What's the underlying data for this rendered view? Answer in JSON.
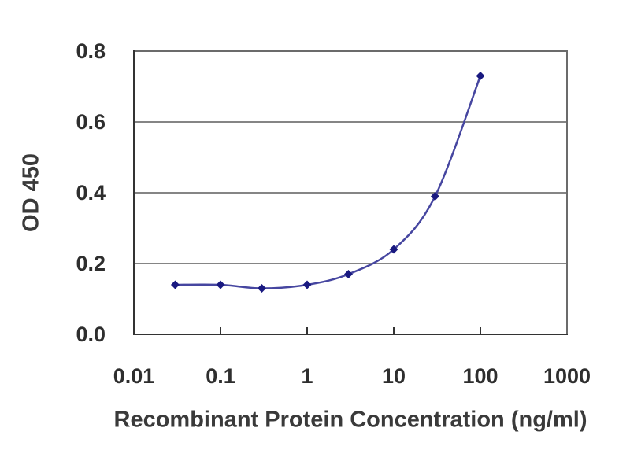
{
  "figure": {
    "background_color": "#ffffff"
  },
  "chart_data": {
    "type": "line",
    "subtype": "scatter-smooth-line-with-markers",
    "title": "",
    "xlabel": "Recombinant Protein Concentration (ng/ml)",
    "ylabel": "OD 450",
    "x_scale": "log",
    "y_scale": "linear",
    "xlim": [
      0.01,
      1000
    ],
    "ylim": [
      0.0,
      0.8
    ],
    "x": [
      0.03,
      0.1,
      0.3,
      1,
      3,
      10,
      30,
      100
    ],
    "y": [
      0.14,
      0.14,
      0.13,
      0.14,
      0.17,
      0.24,
      0.39,
      0.73
    ],
    "x_ticks": [
      0.01,
      0.1,
      1,
      10,
      100,
      1000
    ],
    "x_tick_labels": [
      "0.01",
      "0.1",
      "1",
      "10",
      "100",
      "1000"
    ],
    "y_ticks": [
      0.0,
      0.2,
      0.4,
      0.6,
      0.8
    ],
    "y_tick_labels": [
      "0.0",
      "0.2",
      "0.4",
      "0.6",
      "0.8"
    ],
    "grid": "horizontal-only",
    "legend": "none",
    "marker_shape": "diamond",
    "colors": {
      "line": "#4646a0",
      "marker": "#191980",
      "gridline": "#858585",
      "border": "#6b6b6b",
      "axis": "#333333",
      "tick_text": "#2e2e2e",
      "label_text": "#3a3a3a"
    }
  }
}
